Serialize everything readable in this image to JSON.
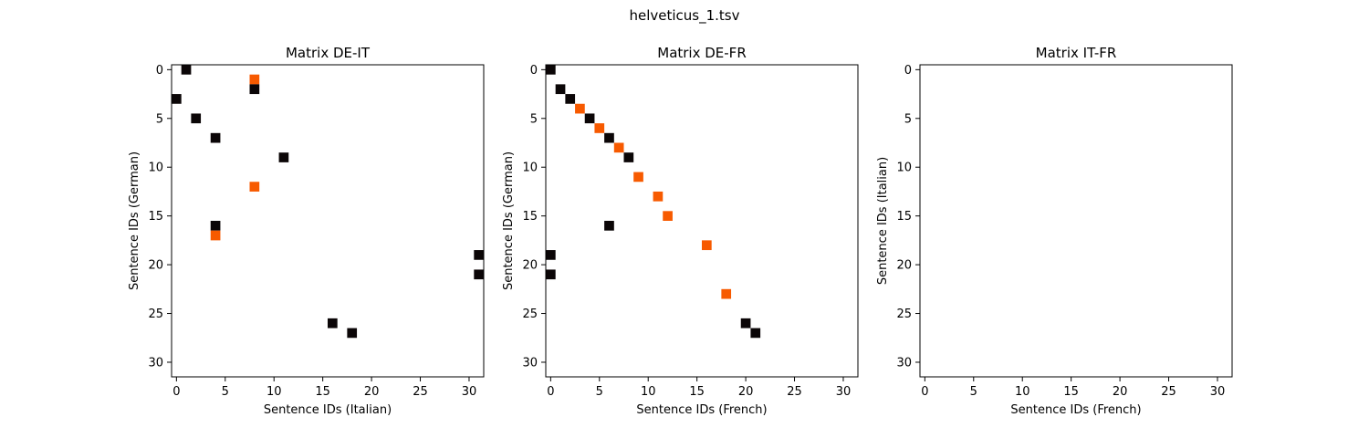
{
  "figure": {
    "suptitle": "helveticus_1.tsv"
  },
  "colors": {
    "black_cell": "#0b0607",
    "orange_cell": "#f75a00",
    "axes_edge": "#000000",
    "background": "#ffffff"
  },
  "chart_data": [
    {
      "type": "heatmap",
      "title": "Matrix DE-IT",
      "xlabel": "Sentence IDs (Italian)",
      "ylabel": "Sentence IDs (German)",
      "xlim": [
        -0.5,
        31.5
      ],
      "ylim": [
        31.5,
        -0.5
      ],
      "xticks": [
        0,
        5,
        10,
        15,
        20,
        25,
        30
      ],
      "yticks": [
        0,
        5,
        10,
        15,
        20,
        25,
        30
      ],
      "grid": false,
      "cells": [
        {
          "x": 1,
          "y": 0,
          "kind": "black"
        },
        {
          "x": 8,
          "y": 1,
          "kind": "orange"
        },
        {
          "x": 8,
          "y": 2,
          "kind": "black"
        },
        {
          "x": 0,
          "y": 3,
          "kind": "black"
        },
        {
          "x": 2,
          "y": 5,
          "kind": "black"
        },
        {
          "x": 4,
          "y": 7,
          "kind": "black"
        },
        {
          "x": 11,
          "y": 9,
          "kind": "black"
        },
        {
          "x": 8,
          "y": 12,
          "kind": "orange"
        },
        {
          "x": 4,
          "y": 16,
          "kind": "black"
        },
        {
          "x": 4,
          "y": 17,
          "kind": "orange"
        },
        {
          "x": 31,
          "y": 19,
          "kind": "black"
        },
        {
          "x": 31,
          "y": 21,
          "kind": "black"
        },
        {
          "x": 16,
          "y": 26,
          "kind": "black"
        },
        {
          "x": 18,
          "y": 27,
          "kind": "black"
        }
      ]
    },
    {
      "type": "heatmap",
      "title": "Matrix DE-FR",
      "xlabel": "Sentence IDs (French)",
      "ylabel": "Sentence IDs (German)",
      "xlim": [
        -0.5,
        31.5
      ],
      "ylim": [
        31.5,
        -0.5
      ],
      "xticks": [
        0,
        5,
        10,
        15,
        20,
        25,
        30
      ],
      "yticks": [
        0,
        5,
        10,
        15,
        20,
        25,
        30
      ],
      "grid": false,
      "cells": [
        {
          "x": 0,
          "y": 0,
          "kind": "black"
        },
        {
          "x": 1,
          "y": 2,
          "kind": "black"
        },
        {
          "x": 2,
          "y": 3,
          "kind": "black"
        },
        {
          "x": 3,
          "y": 4,
          "kind": "orange"
        },
        {
          "x": 4,
          "y": 5,
          "kind": "black"
        },
        {
          "x": 5,
          "y": 6,
          "kind": "orange"
        },
        {
          "x": 6,
          "y": 7,
          "kind": "black"
        },
        {
          "x": 7,
          "y": 8,
          "kind": "orange"
        },
        {
          "x": 8,
          "y": 9,
          "kind": "black"
        },
        {
          "x": 9,
          "y": 11,
          "kind": "orange"
        },
        {
          "x": 11,
          "y": 13,
          "kind": "orange"
        },
        {
          "x": 12,
          "y": 15,
          "kind": "orange"
        },
        {
          "x": 6,
          "y": 16,
          "kind": "black"
        },
        {
          "x": 16,
          "y": 18,
          "kind": "orange"
        },
        {
          "x": 0,
          "y": 19,
          "kind": "black"
        },
        {
          "x": 0,
          "y": 21,
          "kind": "black"
        },
        {
          "x": 18,
          "y": 23,
          "kind": "orange"
        },
        {
          "x": 20,
          "y": 26,
          "kind": "black"
        },
        {
          "x": 21,
          "y": 27,
          "kind": "black"
        }
      ]
    },
    {
      "type": "heatmap",
      "title": "Matrix IT-FR",
      "xlabel": "Sentence IDs (French)",
      "ylabel": "Sentence IDs (Italian)",
      "xlim": [
        -0.5,
        31.5
      ],
      "ylim": [
        31.5,
        -0.5
      ],
      "xticks": [
        0,
        5,
        10,
        15,
        20,
        25,
        30
      ],
      "yticks": [
        0,
        5,
        10,
        15,
        20,
        25,
        30
      ],
      "grid": false,
      "cells": []
    }
  ]
}
